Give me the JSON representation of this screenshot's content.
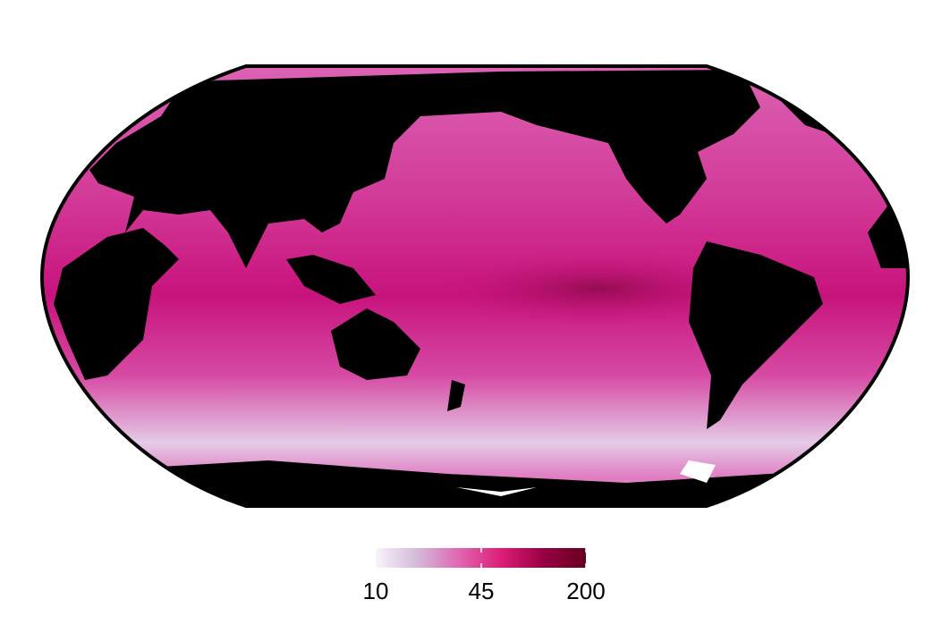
{
  "colorbar": {
    "lim": [
      10,
      200
    ],
    "ticks": [
      10,
      45,
      200
    ],
    "log": true,
    "colors": [
      "#f7f4f9",
      "#d4b9da",
      "#df65b0",
      "#dd1c77",
      "#980043",
      "#67001f"
    ]
  }
}
